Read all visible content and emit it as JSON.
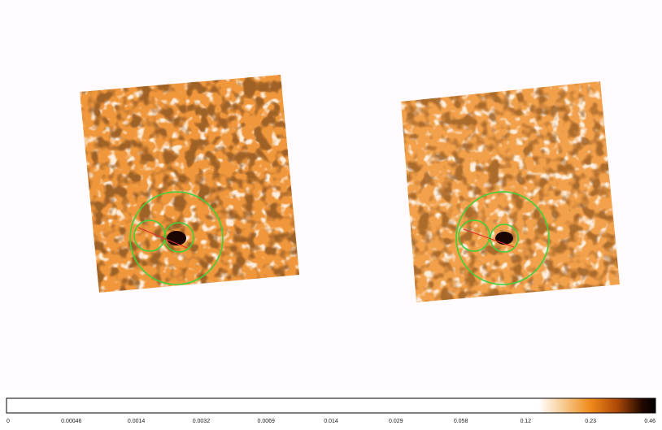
{
  "colorbar": {
    "ticks": [
      0,
      0.00046,
      0.0014,
      0.0032,
      0.0069,
      0.014,
      0.029,
      0.058,
      0.12,
      0.23,
      0.46
    ]
  }
}
